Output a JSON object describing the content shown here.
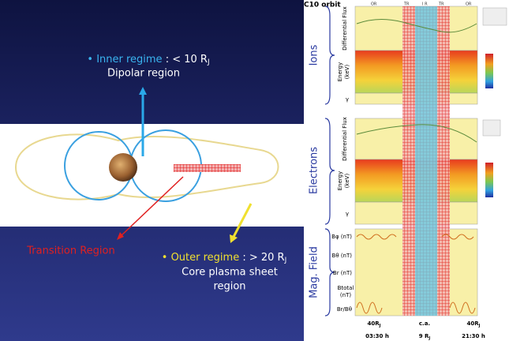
{
  "left": {
    "inner": {
      "bullet": "•",
      "name": "Inner regime",
      "value": ": < 10 R",
      "sub": "J",
      "desc": "Dipolar region"
    },
    "transition": "Transition Region",
    "outer": {
      "bullet": "•",
      "name": "Outer regime",
      "value": ": > 20 R",
      "sub": "J",
      "desc": [
        "Core plasma sheet",
        "region"
      ]
    }
  },
  "right": {
    "title": "C10 orbit",
    "top_labels": [
      "OR",
      "TR",
      "I R",
      "TR",
      "OR"
    ],
    "groups": [
      "Ions",
      "Electrons",
      "Mag. Field"
    ],
    "ion_labels": [
      "Differential Flux",
      "Energy",
      "(keV)",
      "γ"
    ],
    "electron_labels": [
      "Differential Flux",
      "Energy",
      "(keV)",
      "γ"
    ],
    "mag_labels": [
      "Bφ (nT)",
      "Bθ (nT)",
      "Br (nT)",
      "Btotal",
      "(nT)",
      "Br/Bθ"
    ],
    "bottom": [
      {
        "text": "40R",
        "sub": "J"
      },
      {
        "text": "c.a."
      },
      {
        "text": "40R",
        "sub": "J"
      },
      {
        "text": "03:30  h"
      },
      {
        "text": "9 R",
        "sub": "J"
      },
      {
        "text": "21:30 h"
      }
    ]
  }
}
